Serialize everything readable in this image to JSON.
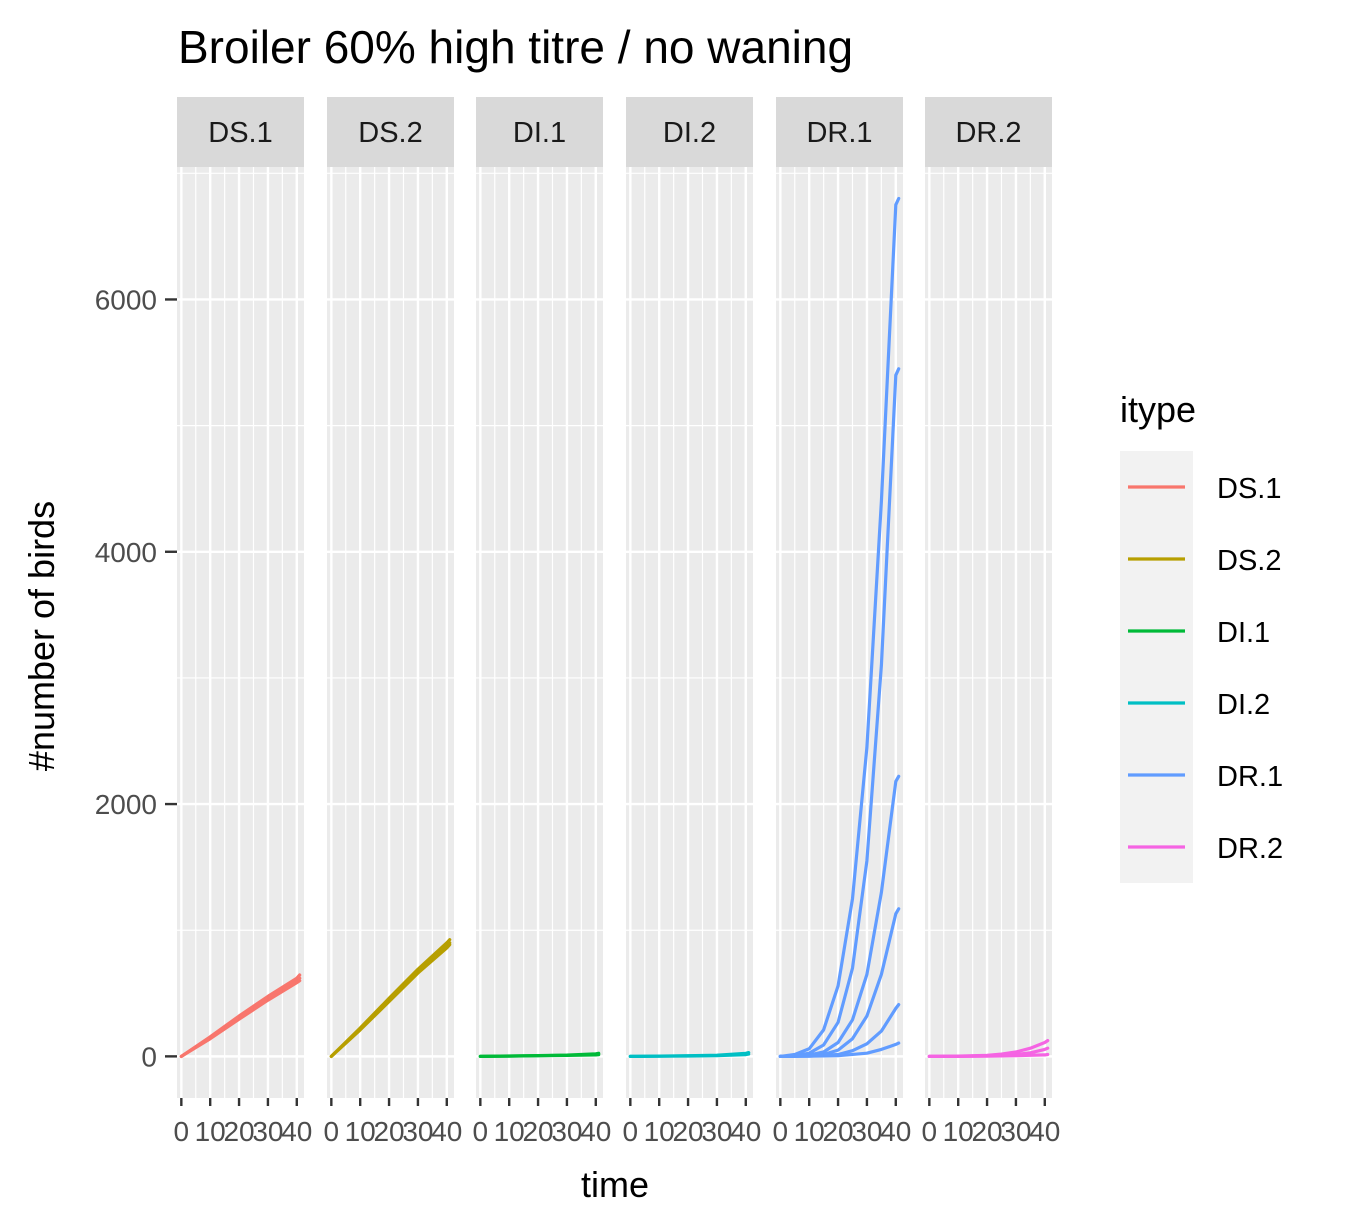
{
  "chart_data": {
    "type": "line",
    "title": "Broiler 60% high titre / no waning",
    "xlabel": "time",
    "ylabel": "#number of birds",
    "facet_by": "itype",
    "facets": [
      "DS.1",
      "DS.2",
      "DI.1",
      "DI.2",
      "DR.1",
      "DR.2"
    ],
    "x_ticks": [
      0,
      10,
      20,
      30,
      40
    ],
    "x_tick_labels": [
      "0",
      "10",
      "20",
      "30",
      "40"
    ],
    "xlim": [
      -1.5,
      42.5
    ],
    "y_ticks": [
      0,
      2000,
      4000,
      6000
    ],
    "y_tick_labels": [
      "0",
      "2000",
      "4000",
      "6000"
    ],
    "ylim": [
      -330,
      7050
    ],
    "grid": true,
    "legend": {
      "title": "itype",
      "position": "right",
      "entries": [
        "DS.1",
        "DS.2",
        "DI.1",
        "DI.2",
        "DR.1",
        "DR.2"
      ]
    },
    "colors": {
      "DS.1": "#F8766D",
      "DS.2": "#B79F00",
      "DI.1": "#00BA38",
      "DI.2": "#00BFC4",
      "DR.1": "#619CFF",
      "DR.2": "#F564E3"
    },
    "series": [
      {
        "facet": "DS.1",
        "x": [
          0,
          10,
          20,
          30,
          40,
          41
        ],
        "y": [
          0,
          155,
          320,
          475,
          620,
          645
        ]
      },
      {
        "facet": "DS.1",
        "x": [
          0,
          10,
          20,
          30,
          40,
          41
        ],
        "y": [
          0,
          140,
          295,
          445,
          585,
          600
        ]
      },
      {
        "facet": "DS.1",
        "x": [
          0,
          10,
          20,
          30,
          40,
          41
        ],
        "y": [
          0,
          150,
          305,
          460,
          600,
          620
        ]
      },
      {
        "facet": "DS.2",
        "x": [
          0,
          10,
          20,
          30,
          40,
          41
        ],
        "y": [
          0,
          225,
          460,
          690,
          900,
          925
        ]
      },
      {
        "facet": "DS.2",
        "x": [
          0,
          10,
          20,
          30,
          40,
          41
        ],
        "y": [
          0,
          210,
          435,
          660,
          860,
          885
        ]
      },
      {
        "facet": "DS.2",
        "x": [
          0,
          10,
          20,
          30,
          40,
          41
        ],
        "y": [
          0,
          220,
          450,
          675,
          880,
          900
        ]
      },
      {
        "facet": "DI.1",
        "x": [
          0,
          10,
          20,
          30,
          40,
          41
        ],
        "y": [
          0,
          2,
          5,
          8,
          12,
          14
        ]
      },
      {
        "facet": "DI.1",
        "x": [
          0,
          10,
          20,
          30,
          40,
          41
        ],
        "y": [
          0,
          3,
          6,
          10,
          20,
          24
        ]
      },
      {
        "facet": "DI.2",
        "x": [
          0,
          10,
          20,
          30,
          40,
          41
        ],
        "y": [
          0,
          1,
          3,
          6,
          14,
          18
        ]
      },
      {
        "facet": "DI.2",
        "x": [
          0,
          10,
          20,
          30,
          40,
          41
        ],
        "y": [
          0,
          2,
          5,
          9,
          24,
          30
        ]
      },
      {
        "facet": "DR.1",
        "x": [
          0,
          5,
          10,
          15,
          20,
          25,
          30,
          35,
          40,
          41
        ],
        "y": [
          0,
          15,
          60,
          210,
          560,
          1250,
          2450,
          4400,
          6750,
          6800
        ]
      },
      {
        "facet": "DR.1",
        "x": [
          0,
          5,
          10,
          15,
          20,
          25,
          30,
          35,
          40,
          41
        ],
        "y": [
          0,
          5,
          25,
          90,
          270,
          700,
          1550,
          3100,
          5400,
          5450
        ]
      },
      {
        "facet": "DR.1",
        "x": [
          0,
          5,
          10,
          15,
          20,
          25,
          30,
          35,
          40,
          41
        ],
        "y": [
          0,
          2,
          10,
          35,
          110,
          290,
          650,
          1300,
          2180,
          2220
        ]
      },
      {
        "facet": "DR.1",
        "x": [
          0,
          5,
          10,
          15,
          20,
          25,
          30,
          35,
          40,
          41
        ],
        "y": [
          0,
          1,
          5,
          15,
          50,
          140,
          320,
          650,
          1130,
          1170
        ]
      },
      {
        "facet": "DR.1",
        "x": [
          0,
          10,
          20,
          25,
          30,
          35,
          40,
          41
        ],
        "y": [
          0,
          2,
          15,
          45,
          100,
          200,
          380,
          410
        ]
      },
      {
        "facet": "DR.1",
        "x": [
          0,
          10,
          20,
          30,
          35,
          40,
          41
        ],
        "y": [
          0,
          1,
          5,
          25,
          55,
          95,
          105
        ]
      },
      {
        "facet": "DR.2",
        "x": [
          0,
          10,
          20,
          25,
          30,
          35,
          40,
          41
        ],
        "y": [
          0,
          2,
          8,
          18,
          35,
          65,
          110,
          125
        ]
      },
      {
        "facet": "DR.2",
        "x": [
          0,
          10,
          20,
          30,
          35,
          40,
          41
        ],
        "y": [
          0,
          1,
          4,
          15,
          28,
          55,
          65
        ]
      },
      {
        "facet": "DR.2",
        "x": [
          0,
          10,
          20,
          30,
          40,
          41
        ],
        "y": [
          0,
          0,
          2,
          5,
          12,
          15
        ]
      }
    ]
  }
}
